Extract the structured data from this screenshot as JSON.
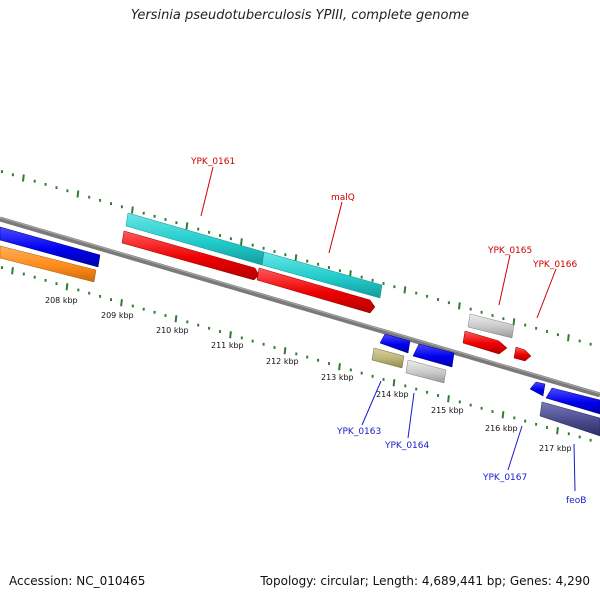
{
  "title": "Yersinia pseudotuberculosis YPIII, complete genome",
  "footer": {
    "accession": "Accession: NC_010465",
    "topology": "Topology: circular; Length: 4,689,441 bp; Genes: 4,290"
  },
  "colors": {
    "backbone": "#7a7a7a",
    "tick": "#2e7d32",
    "label_top": "#cc0000",
    "label_bottom": "#1a1acc",
    "red": "#ff0000",
    "blue": "#0000ee",
    "cyan": "#22cccc",
    "orange": "#ff8c1a",
    "gray": "#c8c8c8",
    "olive": "#bbb377",
    "navy": "#4a4a8e"
  },
  "ticks": [
    "208 kbp",
    "209 kbp",
    "210 kbp",
    "211 kbp",
    "212 kbp",
    "213 kbp",
    "214 kbp",
    "215 kbp",
    "216 kbp",
    "217 kbp"
  ],
  "gene_labels_top": [
    "YPK_0161",
    "malQ",
    "YPK_0165",
    "YPK_0166"
  ],
  "gene_labels_bottom": [
    "YPK_0163",
    "YPK_0164",
    "YPK_0167",
    "feoB"
  ]
}
